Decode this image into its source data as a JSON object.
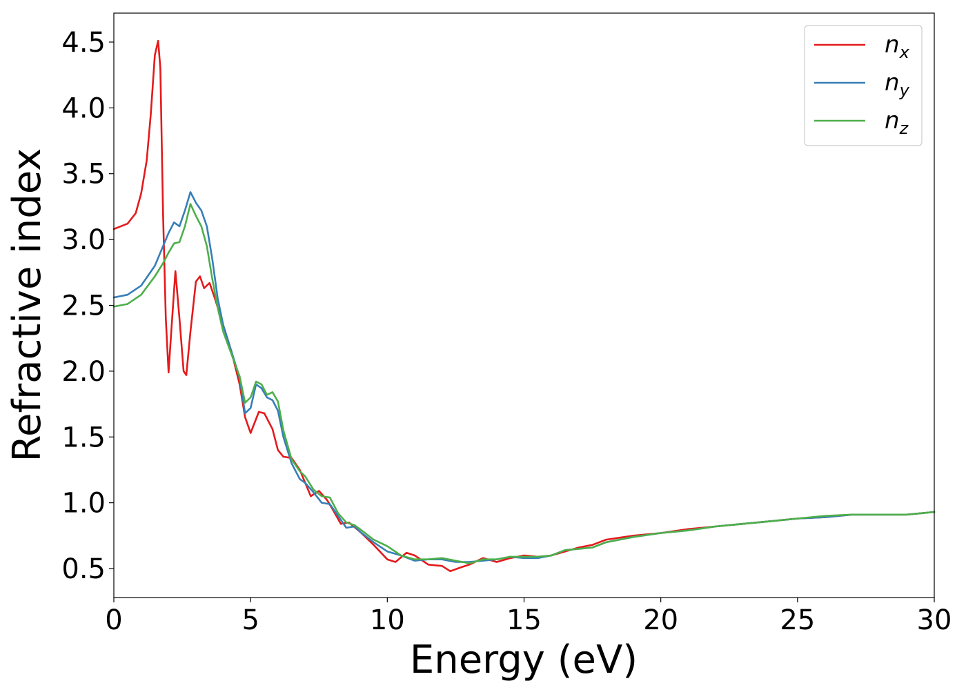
{
  "chart_data": {
    "type": "line",
    "xlabel": "Energy (eV)",
    "ylabel": "Refractive index",
    "xlim": [
      0,
      30
    ],
    "ylim": [
      0.28,
      4.72
    ],
    "xticks": [
      "0",
      "5",
      "10",
      "15",
      "20",
      "25",
      "30"
    ],
    "yticks": [
      "0.5",
      "1.0",
      "1.5",
      "2.0",
      "2.5",
      "3.0",
      "3.5",
      "4.0",
      "4.5"
    ],
    "grid": false,
    "legend_position": "top-right",
    "series": [
      {
        "name": "n",
        "subscript": "x",
        "color": "#e41a1c",
        "points": [
          [
            0,
            3.08
          ],
          [
            0.5,
            3.12
          ],
          [
            0.8,
            3.2
          ],
          [
            1.0,
            3.35
          ],
          [
            1.2,
            3.6
          ],
          [
            1.35,
            3.95
          ],
          [
            1.5,
            4.4
          ],
          [
            1.62,
            4.51
          ],
          [
            1.7,
            4.3
          ],
          [
            1.8,
            3.2
          ],
          [
            1.9,
            2.4
          ],
          [
            2.0,
            1.99
          ],
          [
            2.1,
            2.3
          ],
          [
            2.25,
            2.76
          ],
          [
            2.4,
            2.4
          ],
          [
            2.55,
            2.0
          ],
          [
            2.65,
            1.97
          ],
          [
            2.8,
            2.3
          ],
          [
            3.0,
            2.68
          ],
          [
            3.15,
            2.72
          ],
          [
            3.3,
            2.63
          ],
          [
            3.5,
            2.67
          ],
          [
            3.7,
            2.55
          ],
          [
            4.0,
            2.35
          ],
          [
            4.3,
            2.15
          ],
          [
            4.6,
            1.9
          ],
          [
            4.8,
            1.65
          ],
          [
            5.0,
            1.53
          ],
          [
            5.3,
            1.69
          ],
          [
            5.5,
            1.68
          ],
          [
            5.8,
            1.56
          ],
          [
            6.0,
            1.4
          ],
          [
            6.2,
            1.35
          ],
          [
            6.5,
            1.34
          ],
          [
            6.8,
            1.25
          ],
          [
            7.0,
            1.15
          ],
          [
            7.2,
            1.05
          ],
          [
            7.5,
            1.09
          ],
          [
            7.8,
            1.02
          ],
          [
            8.0,
            0.95
          ],
          [
            8.3,
            0.84
          ],
          [
            8.6,
            0.85
          ],
          [
            9.0,
            0.78
          ],
          [
            9.5,
            0.68
          ],
          [
            10.0,
            0.57
          ],
          [
            10.3,
            0.55
          ],
          [
            10.7,
            0.62
          ],
          [
            11.0,
            0.6
          ],
          [
            11.5,
            0.53
          ],
          [
            12.0,
            0.52
          ],
          [
            12.3,
            0.48
          ],
          [
            12.7,
            0.51
          ],
          [
            13.0,
            0.53
          ],
          [
            13.5,
            0.58
          ],
          [
            14.0,
            0.55
          ],
          [
            14.5,
            0.58
          ],
          [
            15.0,
            0.6
          ],
          [
            15.5,
            0.59
          ],
          [
            16.0,
            0.6
          ],
          [
            16.5,
            0.63
          ],
          [
            17.0,
            0.66
          ],
          [
            17.5,
            0.68
          ],
          [
            18.0,
            0.72
          ],
          [
            19.0,
            0.75
          ],
          [
            20.0,
            0.77
          ],
          [
            21.0,
            0.8
          ],
          [
            22.0,
            0.82
          ],
          [
            23.0,
            0.84
          ],
          [
            24.0,
            0.86
          ],
          [
            25.0,
            0.88
          ],
          [
            26.0,
            0.89
          ],
          [
            27.0,
            0.91
          ],
          [
            28.0,
            0.91
          ],
          [
            29.0,
            0.91
          ],
          [
            30.0,
            0.93
          ]
        ]
      },
      {
        "name": "n",
        "subscript": "y",
        "color": "#377eb8",
        "points": [
          [
            0,
            2.56
          ],
          [
            0.5,
            2.58
          ],
          [
            1.0,
            2.65
          ],
          [
            1.5,
            2.8
          ],
          [
            1.8,
            2.95
          ],
          [
            2.0,
            3.05
          ],
          [
            2.2,
            3.13
          ],
          [
            2.4,
            3.1
          ],
          [
            2.6,
            3.22
          ],
          [
            2.8,
            3.36
          ],
          [
            3.0,
            3.28
          ],
          [
            3.2,
            3.22
          ],
          [
            3.4,
            3.1
          ],
          [
            3.6,
            2.85
          ],
          [
            3.8,
            2.55
          ],
          [
            4.0,
            2.35
          ],
          [
            4.3,
            2.15
          ],
          [
            4.6,
            1.95
          ],
          [
            4.8,
            1.68
          ],
          [
            5.0,
            1.72
          ],
          [
            5.2,
            1.9
          ],
          [
            5.4,
            1.87
          ],
          [
            5.6,
            1.8
          ],
          [
            5.8,
            1.78
          ],
          [
            6.0,
            1.7
          ],
          [
            6.2,
            1.5
          ],
          [
            6.5,
            1.3
          ],
          [
            6.8,
            1.18
          ],
          [
            7.0,
            1.15
          ],
          [
            7.3,
            1.08
          ],
          [
            7.6,
            1.0
          ],
          [
            7.9,
            0.99
          ],
          [
            8.2,
            0.9
          ],
          [
            8.5,
            0.81
          ],
          [
            8.8,
            0.82
          ],
          [
            9.0,
            0.78
          ],
          [
            9.5,
            0.7
          ],
          [
            10.0,
            0.63
          ],
          [
            10.5,
            0.6
          ],
          [
            11.0,
            0.56
          ],
          [
            11.5,
            0.57
          ],
          [
            12.0,
            0.57
          ],
          [
            12.5,
            0.55
          ],
          [
            13.0,
            0.55
          ],
          [
            13.5,
            0.56
          ],
          [
            14.0,
            0.57
          ],
          [
            14.5,
            0.59
          ],
          [
            15.0,
            0.58
          ],
          [
            15.5,
            0.58
          ],
          [
            16.0,
            0.6
          ],
          [
            16.5,
            0.64
          ],
          [
            17.0,
            0.65
          ],
          [
            17.5,
            0.66
          ],
          [
            18.0,
            0.7
          ],
          [
            19.0,
            0.74
          ],
          [
            20.0,
            0.77
          ],
          [
            21.0,
            0.79
          ],
          [
            22.0,
            0.82
          ],
          [
            23.0,
            0.84
          ],
          [
            24.0,
            0.86
          ],
          [
            25.0,
            0.88
          ],
          [
            26.0,
            0.89
          ],
          [
            27.0,
            0.91
          ],
          [
            28.0,
            0.91
          ],
          [
            29.0,
            0.91
          ],
          [
            30.0,
            0.93
          ]
        ]
      },
      {
        "name": "n",
        "subscript": "z",
        "color": "#4daf4a",
        "points": [
          [
            0,
            2.49
          ],
          [
            0.5,
            2.51
          ],
          [
            1.0,
            2.58
          ],
          [
            1.5,
            2.72
          ],
          [
            1.8,
            2.82
          ],
          [
            2.0,
            2.9
          ],
          [
            2.2,
            2.97
          ],
          [
            2.4,
            2.98
          ],
          [
            2.6,
            3.1
          ],
          [
            2.8,
            3.27
          ],
          [
            3.0,
            3.18
          ],
          [
            3.2,
            3.1
          ],
          [
            3.4,
            2.95
          ],
          [
            3.6,
            2.7
          ],
          [
            3.8,
            2.48
          ],
          [
            4.0,
            2.3
          ],
          [
            4.3,
            2.13
          ],
          [
            4.6,
            1.96
          ],
          [
            4.8,
            1.76
          ],
          [
            5.0,
            1.8
          ],
          [
            5.2,
            1.92
          ],
          [
            5.4,
            1.9
          ],
          [
            5.6,
            1.82
          ],
          [
            5.8,
            1.84
          ],
          [
            6.0,
            1.77
          ],
          [
            6.2,
            1.55
          ],
          [
            6.5,
            1.33
          ],
          [
            6.8,
            1.24
          ],
          [
            7.0,
            1.2
          ],
          [
            7.3,
            1.1
          ],
          [
            7.6,
            1.05
          ],
          [
            7.9,
            1.04
          ],
          [
            8.2,
            0.92
          ],
          [
            8.5,
            0.85
          ],
          [
            8.8,
            0.83
          ],
          [
            9.0,
            0.8
          ],
          [
            9.5,
            0.72
          ],
          [
            10.0,
            0.67
          ],
          [
            10.5,
            0.6
          ],
          [
            11.0,
            0.57
          ],
          [
            11.5,
            0.57
          ],
          [
            12.0,
            0.58
          ],
          [
            12.5,
            0.56
          ],
          [
            13.0,
            0.54
          ],
          [
            13.5,
            0.57
          ],
          [
            14.0,
            0.57
          ],
          [
            14.5,
            0.59
          ],
          [
            15.0,
            0.59
          ],
          [
            15.5,
            0.59
          ],
          [
            16.0,
            0.6
          ],
          [
            16.5,
            0.64
          ],
          [
            17.0,
            0.65
          ],
          [
            17.5,
            0.66
          ],
          [
            18.0,
            0.7
          ],
          [
            19.0,
            0.74
          ],
          [
            20.0,
            0.77
          ],
          [
            21.0,
            0.79
          ],
          [
            22.0,
            0.82
          ],
          [
            23.0,
            0.84
          ],
          [
            24.0,
            0.86
          ],
          [
            25.0,
            0.88
          ],
          [
            26.0,
            0.9
          ],
          [
            27.0,
            0.91
          ],
          [
            28.0,
            0.91
          ],
          [
            29.0,
            0.91
          ],
          [
            30.0,
            0.93
          ]
        ]
      }
    ]
  }
}
